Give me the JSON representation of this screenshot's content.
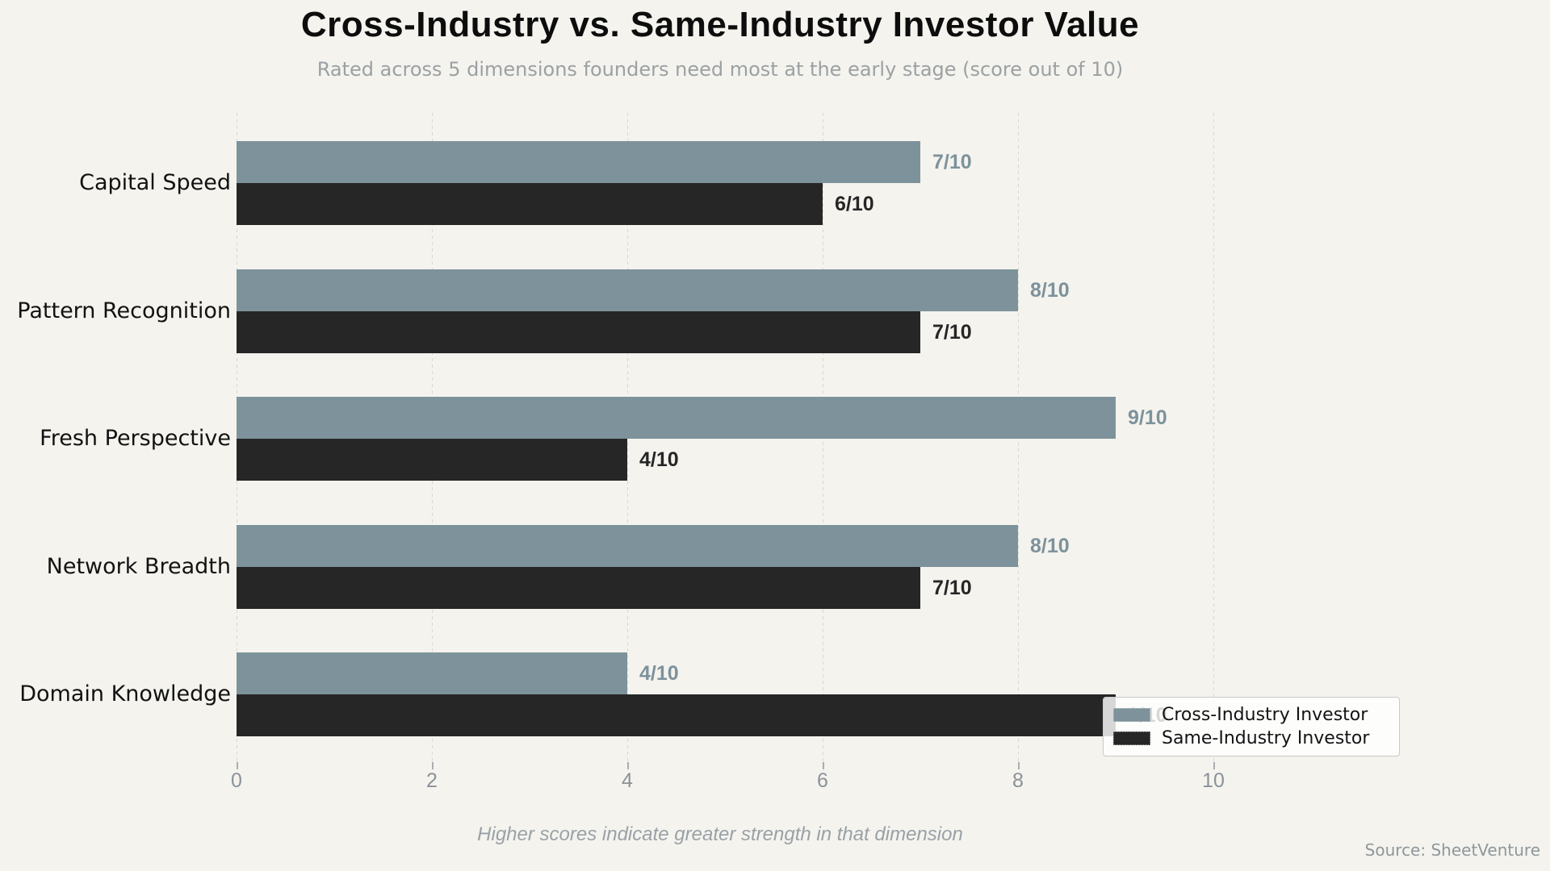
{
  "title": "Cross-Industry vs. Same-Industry Investor Value",
  "subtitle": "Rated across 5 dimensions founders need most at the early stage (score out of 10)",
  "footer_note": "Higher scores indicate greater strength in that dimension",
  "source": "Source: SheetVenture",
  "colors": {
    "background": "#f4f3ee",
    "cross_industry": "#7d929b",
    "same_industry": "#262626",
    "gridline": "#d8d7d2",
    "tick_text": "#8b9298",
    "subtitle_text": "#9ba1a3",
    "footer_text": "#9aa1a6",
    "source_text": "#8e979c",
    "title_text": "#0d0d0d",
    "category_text": "#121212"
  },
  "chart_data": {
    "type": "bar",
    "orientation": "horizontal",
    "title": "Cross-Industry vs. Same-Industry Investor Value",
    "subtitle": "Rated across 5 dimensions founders need most at the early stage (score out of 10)",
    "categories": [
      "Capital Speed",
      "Pattern Recognition",
      "Fresh Perspective",
      "Network Breadth",
      "Domain Knowledge"
    ],
    "series": [
      {
        "name": "Cross-Industry Investor",
        "color": "#7d929b",
        "values": [
          7,
          8,
          9,
          8,
          4
        ],
        "labels": [
          "7/10",
          "8/10",
          "9/10",
          "8/10",
          "4/10"
        ],
        "label_color": "#7d929b"
      },
      {
        "name": "Same-Industry Investor",
        "color": "#262626",
        "values": [
          6,
          7,
          4,
          7,
          9
        ],
        "labels": [
          "6/10",
          "7/10",
          "4/10",
          "7/10",
          "9/10"
        ],
        "label_color": "#262626"
      }
    ],
    "xlabel": "",
    "ylabel": "",
    "x_ticks": [
      0,
      2,
      4,
      6,
      8,
      10
    ],
    "xlim": [
      0,
      12
    ],
    "grid": "vertical-dashed",
    "legend_position": "lower-right",
    "annotation": "Higher scores indicate greater strength in that dimension",
    "source": "Source: SheetVenture",
    "value_suffix": "/10"
  }
}
